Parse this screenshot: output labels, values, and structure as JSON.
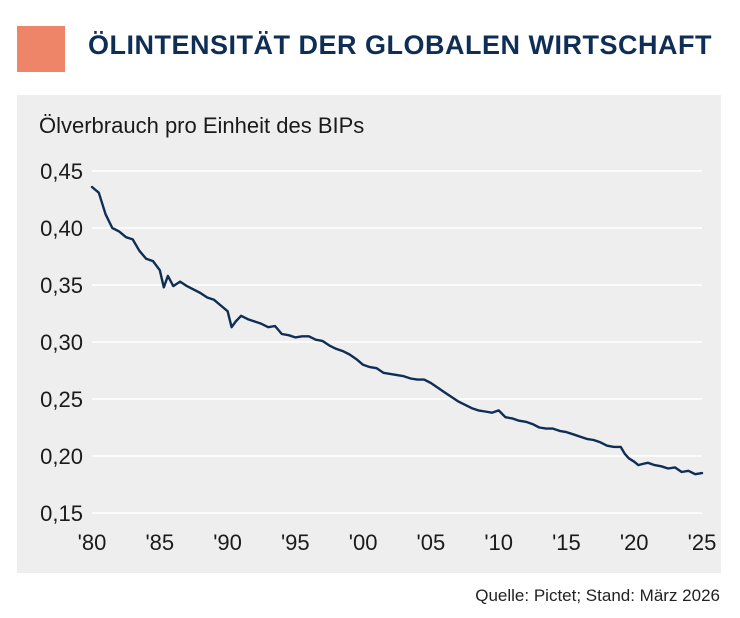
{
  "title": "ÖLINTENSITÄT DER GLOBALEN WIRTSCHAFT",
  "source": "Quelle: Pictet; Stand: März 2026",
  "colors": {
    "accent": "#ee8468",
    "title": "#0f2e55",
    "line": "#0f2e55",
    "panel_bg": "#eeeeee",
    "grid": "#ffffff"
  },
  "chart_data": {
    "type": "line",
    "title": "",
    "ylabel": "Ölverbrauch pro Einheit des BIPs",
    "xlabel": "",
    "ylim": [
      0.15,
      0.45
    ],
    "xlim": [
      1980,
      2025
    ],
    "grid": true,
    "yticks": [
      {
        "value": 0.45,
        "label": "0,45"
      },
      {
        "value": 0.4,
        "label": "0,40"
      },
      {
        "value": 0.35,
        "label": "0,35"
      },
      {
        "value": 0.3,
        "label": "0,30"
      },
      {
        "value": 0.25,
        "label": "0,25"
      },
      {
        "value": 0.2,
        "label": "0,20"
      },
      {
        "value": 0.15,
        "label": "0,15"
      }
    ],
    "xticks": [
      {
        "value": 1980,
        "label": "'80"
      },
      {
        "value": 1985,
        "label": "'85"
      },
      {
        "value": 1990,
        "label": "'90"
      },
      {
        "value": 1995,
        "label": "'95"
      },
      {
        "value": 2000,
        "label": "'00"
      },
      {
        "value": 2005,
        "label": "'05"
      },
      {
        "value": 2010,
        "label": "'10"
      },
      {
        "value": 2015,
        "label": "'15"
      },
      {
        "value": 2020,
        "label": "'20"
      },
      {
        "value": 2025,
        "label": "'25"
      }
    ],
    "series": [
      {
        "x": [
          1980.0,
          1980.5,
          1981.0,
          1981.5,
          1982.0,
          1982.5,
          1983.0,
          1983.5,
          1984.0,
          1984.5,
          1985.0,
          1985.3,
          1985.6,
          1986.0,
          1986.5,
          1987.0,
          1987.5,
          1988.0,
          1988.5,
          1989.0,
          1989.5,
          1990.0,
          1990.3,
          1990.6,
          1991.0,
          1991.5,
          1992.0,
          1992.5,
          1993.0,
          1993.5,
          1994.0,
          1994.5,
          1995.0,
          1995.5,
          1996.0,
          1996.5,
          1997.0,
          1997.5,
          1998.0,
          1998.5,
          1999.0,
          1999.5,
          2000.0,
          2000.5,
          2001.0,
          2001.5,
          2002.0,
          2002.5,
          2003.0,
          2003.5,
          2004.0,
          2004.5,
          2005.0,
          2005.5,
          2006.0,
          2006.5,
          2007.0,
          2007.5,
          2008.0,
          2008.5,
          2009.0,
          2009.5,
          2010.0,
          2010.5,
          2011.0,
          2011.5,
          2012.0,
          2012.5,
          2013.0,
          2013.5,
          2014.0,
          2014.5,
          2015.0,
          2015.5,
          2016.0,
          2016.5,
          2017.0,
          2017.5,
          2018.0,
          2018.5,
          2019.0,
          2019.3,
          2019.6,
          2020.0,
          2020.3,
          2020.6,
          2021.0,
          2021.5,
          2022.0,
          2022.5,
          2023.0,
          2023.5,
          2024.0,
          2024.5,
          2025.0
        ],
        "y": [
          0.436,
          0.431,
          0.412,
          0.4,
          0.397,
          0.392,
          0.39,
          0.38,
          0.373,
          0.371,
          0.363,
          0.348,
          0.358,
          0.349,
          0.353,
          0.349,
          0.346,
          0.343,
          0.339,
          0.337,
          0.332,
          0.327,
          0.313,
          0.318,
          0.323,
          0.32,
          0.318,
          0.316,
          0.313,
          0.314,
          0.307,
          0.306,
          0.304,
          0.305,
          0.305,
          0.302,
          0.301,
          0.297,
          0.294,
          0.292,
          0.289,
          0.285,
          0.28,
          0.278,
          0.277,
          0.273,
          0.272,
          0.271,
          0.27,
          0.268,
          0.267,
          0.267,
          0.264,
          0.26,
          0.256,
          0.252,
          0.248,
          0.245,
          0.242,
          0.24,
          0.239,
          0.238,
          0.24,
          0.234,
          0.233,
          0.231,
          0.23,
          0.228,
          0.225,
          0.224,
          0.224,
          0.222,
          0.221,
          0.219,
          0.217,
          0.215,
          0.214,
          0.212,
          0.209,
          0.208,
          0.208,
          0.202,
          0.198,
          0.195,
          0.192,
          0.193,
          0.194,
          0.192,
          0.191,
          0.189,
          0.19,
          0.186,
          0.187,
          0.184,
          0.185
        ]
      }
    ]
  }
}
